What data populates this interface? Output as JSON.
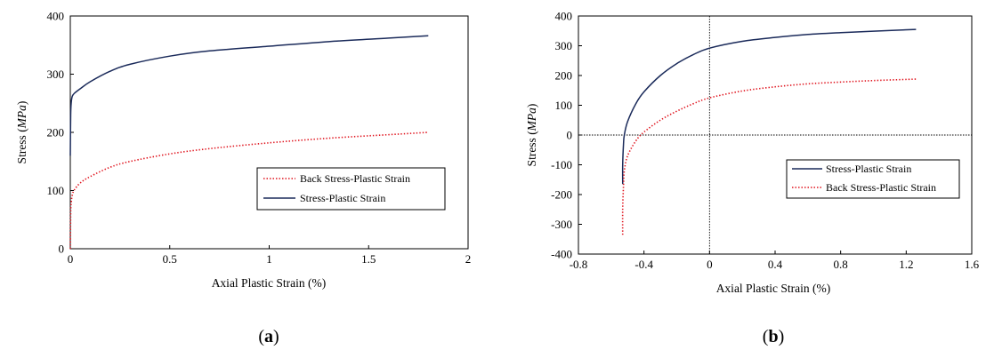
{
  "chart_data": [
    {
      "type": "line",
      "panel_label": "a",
      "xlabel": "Axial Plastic Strain (%)",
      "ylabel_main": "Stress (",
      "ylabel_unit": "MPa",
      "ylabel_close": ")",
      "xlim": [
        0,
        2
      ],
      "ylim": [
        0,
        400
      ],
      "xticks": [
        "0",
        "0.5",
        "1",
        "1.5",
        "2"
      ],
      "yticks": [
        "0",
        "100",
        "200",
        "300",
        "400"
      ],
      "xtick_values": [
        0,
        0.5,
        1,
        1.5,
        2
      ],
      "ytick_values": [
        0,
        100,
        200,
        300,
        400
      ],
      "grid": false,
      "legend": "center-right",
      "series": [
        {
          "name": "Back Stress-Plastic Strain",
          "color": "#e0141e",
          "style": "dotted",
          "x": [
            0,
            0.002,
            0.005,
            0.01,
            0.02,
            0.05,
            0.1,
            0.2,
            0.3,
            0.5,
            0.7,
            1.0,
            1.3,
            1.6,
            1.8
          ],
          "y": [
            0,
            62,
            80,
            92,
            101,
            113,
            124,
            140,
            150,
            163,
            172,
            182,
            190,
            196,
            200
          ]
        },
        {
          "name": "Stress-Plastic Strain",
          "color": "#1a2a5a",
          "style": "solid",
          "x": [
            0,
            0.002,
            0.005,
            0.01,
            0.02,
            0.05,
            0.1,
            0.2,
            0.3,
            0.5,
            0.7,
            1.0,
            1.3,
            1.6,
            1.8
          ],
          "y": [
            160,
            230,
            252,
            262,
            267,
            275,
            287,
            305,
            317,
            331,
            340,
            348,
            356,
            362,
            366
          ]
        }
      ]
    },
    {
      "type": "line",
      "panel_label": "b",
      "xlabel": "Axial Plastic Strain (%)",
      "ylabel_main": "Stress (",
      "ylabel_unit": "MPa",
      "ylabel_close": ")",
      "xlim": [
        -0.8,
        1.6
      ],
      "ylim": [
        -400,
        400
      ],
      "xticks": [
        "-0.8",
        "-0.4",
        "0",
        "0.4",
        "0.8",
        "1.2",
        "1.6"
      ],
      "yticks": [
        "-400",
        "-300",
        "-200",
        "-100",
        "0",
        "100",
        "200",
        "300",
        "400"
      ],
      "xtick_values": [
        -0.8,
        -0.4,
        0,
        0.4,
        0.8,
        1.2,
        1.6
      ],
      "ytick_values": [
        -400,
        -300,
        -200,
        -100,
        0,
        100,
        200,
        300,
        400
      ],
      "grid": false,
      "reference_lines": {
        "x": 0,
        "y": 0
      },
      "legend": "center-right",
      "series": [
        {
          "name": "Stress-Plastic Strain",
          "color": "#1a2a5a",
          "style": "solid",
          "x": [
            -0.53,
            -0.53,
            -0.525,
            -0.52,
            -0.5,
            -0.45,
            -0.4,
            -0.3,
            -0.2,
            -0.1,
            0,
            0.2,
            0.4,
            0.6,
            0.8,
            1.0,
            1.26
          ],
          "y": [
            -165,
            -100,
            -30,
            0,
            45,
            105,
            145,
            200,
            240,
            270,
            292,
            315,
            328,
            338,
            344,
            349,
            355
          ]
        },
        {
          "name": "Back Stress-Plastic Strain",
          "color": "#e0141e",
          "style": "dotted",
          "x": [
            -0.53,
            -0.53,
            -0.525,
            -0.52,
            -0.5,
            -0.45,
            -0.4,
            -0.3,
            -0.2,
            -0.1,
            0,
            0.2,
            0.4,
            0.6,
            0.8,
            1.0,
            1.26
          ],
          "y": [
            -335,
            -250,
            -170,
            -120,
            -70,
            -20,
            10,
            50,
            80,
            105,
            125,
            148,
            162,
            172,
            178,
            183,
            188
          ]
        }
      ]
    }
  ]
}
